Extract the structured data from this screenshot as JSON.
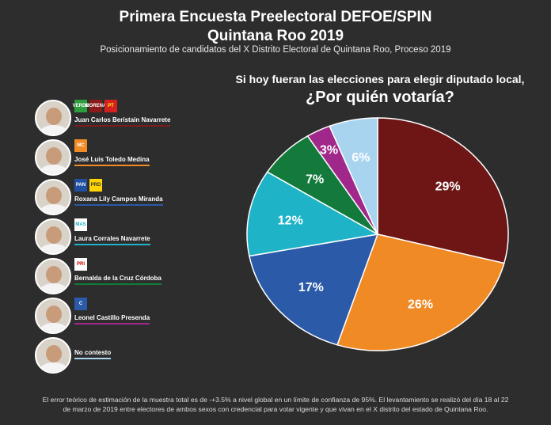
{
  "header": {
    "title_line1": "Primera Encuesta Preelectoral DEFOE/SPIN",
    "title_line2": "Quintana Roo 2019",
    "subtitle": "Posicionamiento de candidatos del X Distrito Electoral de Quintana Roo, Proceso 2019"
  },
  "question": {
    "line1": "Si hoy fueran las elecciones para elegir diputado local,",
    "line2": "¿Por quién votaría?"
  },
  "candidates": [
    {
      "name": "Juan Carlos Beristain Navarrete",
      "color": "#7a1c1c",
      "logos": [
        "VERDE",
        "MORENA",
        "PT"
      ]
    },
    {
      "name": "José Luis Toledo Medina",
      "color": "#f08a24",
      "logos": [
        "MC"
      ]
    },
    {
      "name": "Roxana Lily Campos Miranda",
      "color": "#2a5aa8",
      "logos": [
        "PAN",
        "PRD"
      ]
    },
    {
      "name": "Laura Corrales Navarrete",
      "color": "#1fb3c8",
      "logos": [
        "MAS"
      ]
    },
    {
      "name": "Bernalda de la Cruz Córdoba",
      "color": "#137a3c",
      "logos": [
        "PRI"
      ]
    },
    {
      "name": "Leonel Castillo Presenda",
      "color": "#a0288a",
      "logos": [
        "C"
      ]
    },
    {
      "name": "No contesto",
      "color": "#a8d4f0",
      "logos": []
    }
  ],
  "chart_data": {
    "type": "pie",
    "title": "¿Por quién votaría?",
    "categories": [
      "Juan Carlos Beristain Navarrete",
      "José Luis Toledo Medina",
      "Roxana Lily Campos Miranda",
      "Laura Corrales Navarrete",
      "Bernalda de la Cruz Córdoba",
      "Leonel Castillo Presenda",
      "No contesto"
    ],
    "values": [
      29,
      26,
      17,
      12,
      7,
      3,
      6
    ],
    "labels": [
      "29%",
      "26%",
      "17%",
      "12%",
      "7%",
      "3%",
      "6%"
    ],
    "colors": [
      "#6e1616",
      "#f08a24",
      "#2a5aa8",
      "#1fb3c8",
      "#137a3c",
      "#a0288a",
      "#a8d4f0"
    ],
    "label_colors": [
      "#fff",
      "#fff",
      "#fff",
      "#fff",
      "#fff",
      "#fff",
      "#fff"
    ]
  },
  "footer": {
    "line1": "El error teórico de estimación de la muestra total es de -+3.5% a nivel global en un límite de confianza de 95%. El levantamiento se realizó del día 18 al 22",
    "line2": "de marzo de 2019 entre electores de ambos sexos con credencial para votar vigente y que vivan en el X distrito del estado de Quintana Roo."
  }
}
